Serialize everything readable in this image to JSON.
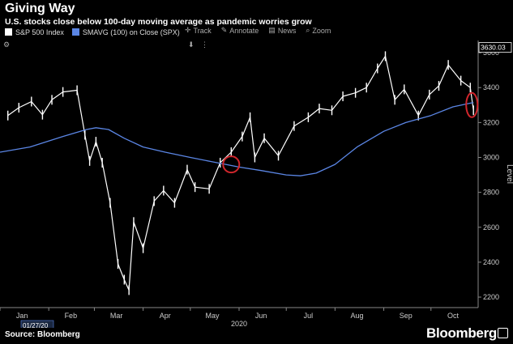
{
  "header": {
    "title": "Giving Way",
    "subtitle": "U.S. stocks close below 100-day moving average as pandemic worries grow"
  },
  "toolbar": {
    "legend_sp500": "S&P 500 Index",
    "legend_smavg": "SMAVG (100)  on Close (SPX)",
    "track": "Track",
    "annotate": "Annotate",
    "news": "News",
    "zoom": "Zoom"
  },
  "footer": {
    "source": "Source: Bloomberg",
    "brand": "Bloomberg"
  },
  "colors": {
    "background": "#000000",
    "price": "#ffffff",
    "sma": "#5b86e5",
    "highlight": "#d0262c",
    "grid": "#333333"
  },
  "chart_data": {
    "type": "line",
    "title": "Giving Way",
    "subtitle": "U.S. stocks close below 100-day moving average as pandemic worries grow",
    "xlabel": "2020",
    "ylabel": "Level",
    "x_ticks": [
      "Jan",
      "Feb",
      "Mar",
      "Apr",
      "May",
      "Jun",
      "Jul",
      "Aug",
      "Sep",
      "Oct"
    ],
    "y_ticks": [
      2200,
      2400,
      2600,
      2800,
      3000,
      3200,
      3400,
      3600
    ],
    "ylim": [
      2140,
      3670
    ],
    "x_start_label": "01/27/20",
    "last_price_label": "3630.03",
    "grid": false,
    "series": [
      {
        "name": "S&P 500 Index",
        "x": [
          "2020-01-06",
          "2020-01-13",
          "2020-01-21",
          "2020-01-28",
          "2020-02-03",
          "2020-02-10",
          "2020-02-19",
          "2020-02-24",
          "2020-02-27",
          "2020-03-02",
          "2020-03-06",
          "2020-03-11",
          "2020-03-16",
          "2020-03-20",
          "2020-03-23",
          "2020-03-26",
          "2020-04-01",
          "2020-04-08",
          "2020-04-14",
          "2020-04-21",
          "2020-04-29",
          "2020-05-04",
          "2020-05-13",
          "2020-05-20",
          "2020-05-27",
          "2020-06-03",
          "2020-06-08",
          "2020-06-11",
          "2020-06-17",
          "2020-06-26",
          "2020-07-06",
          "2020-07-15",
          "2020-07-22",
          "2020-07-30",
          "2020-08-06",
          "2020-08-14",
          "2020-08-21",
          "2020-08-28",
          "2020-09-02",
          "2020-09-08",
          "2020-09-14",
          "2020-09-23",
          "2020-09-30",
          "2020-10-06",
          "2020-10-12",
          "2020-10-20",
          "2020-10-26",
          "2020-10-28"
        ],
        "values": [
          3240,
          3285,
          3320,
          3245,
          3330,
          3375,
          3385,
          3130,
          2980,
          3090,
          2970,
          2740,
          2390,
          2300,
          2240,
          2630,
          2480,
          2750,
          2810,
          2740,
          2930,
          2830,
          2820,
          2970,
          3030,
          3120,
          3230,
          3000,
          3110,
          3010,
          3180,
          3230,
          3280,
          3270,
          3350,
          3370,
          3400,
          3510,
          3580,
          3330,
          3390,
          3240,
          3360,
          3410,
          3530,
          3440,
          3400,
          3270
        ]
      },
      {
        "name": "SMAVG (100)  on Close (SPX)",
        "x": [
          "2020-01-01",
          "2020-01-20",
          "2020-02-10",
          "2020-02-25",
          "2020-03-02",
          "2020-03-10",
          "2020-03-20",
          "2020-04-01",
          "2020-04-15",
          "2020-05-01",
          "2020-05-15",
          "2020-06-01",
          "2020-06-15",
          "2020-07-01",
          "2020-07-10",
          "2020-07-20",
          "2020-08-01",
          "2020-08-15",
          "2020-09-01",
          "2020-09-15",
          "2020-10-01",
          "2020-10-15",
          "2020-10-28"
        ],
        "values": [
          3030,
          3060,
          3120,
          3160,
          3170,
          3160,
          3110,
          3060,
          3030,
          3000,
          2975,
          2945,
          2925,
          2900,
          2895,
          2910,
          2960,
          3060,
          3150,
          3200,
          3240,
          3290,
          3315
        ]
      }
    ],
    "annotations": [
      {
        "type": "circle",
        "x": "2020-05-27",
        "y": 2960
      },
      {
        "type": "ellipse",
        "x": "2020-10-27",
        "y": 3300
      }
    ]
  }
}
